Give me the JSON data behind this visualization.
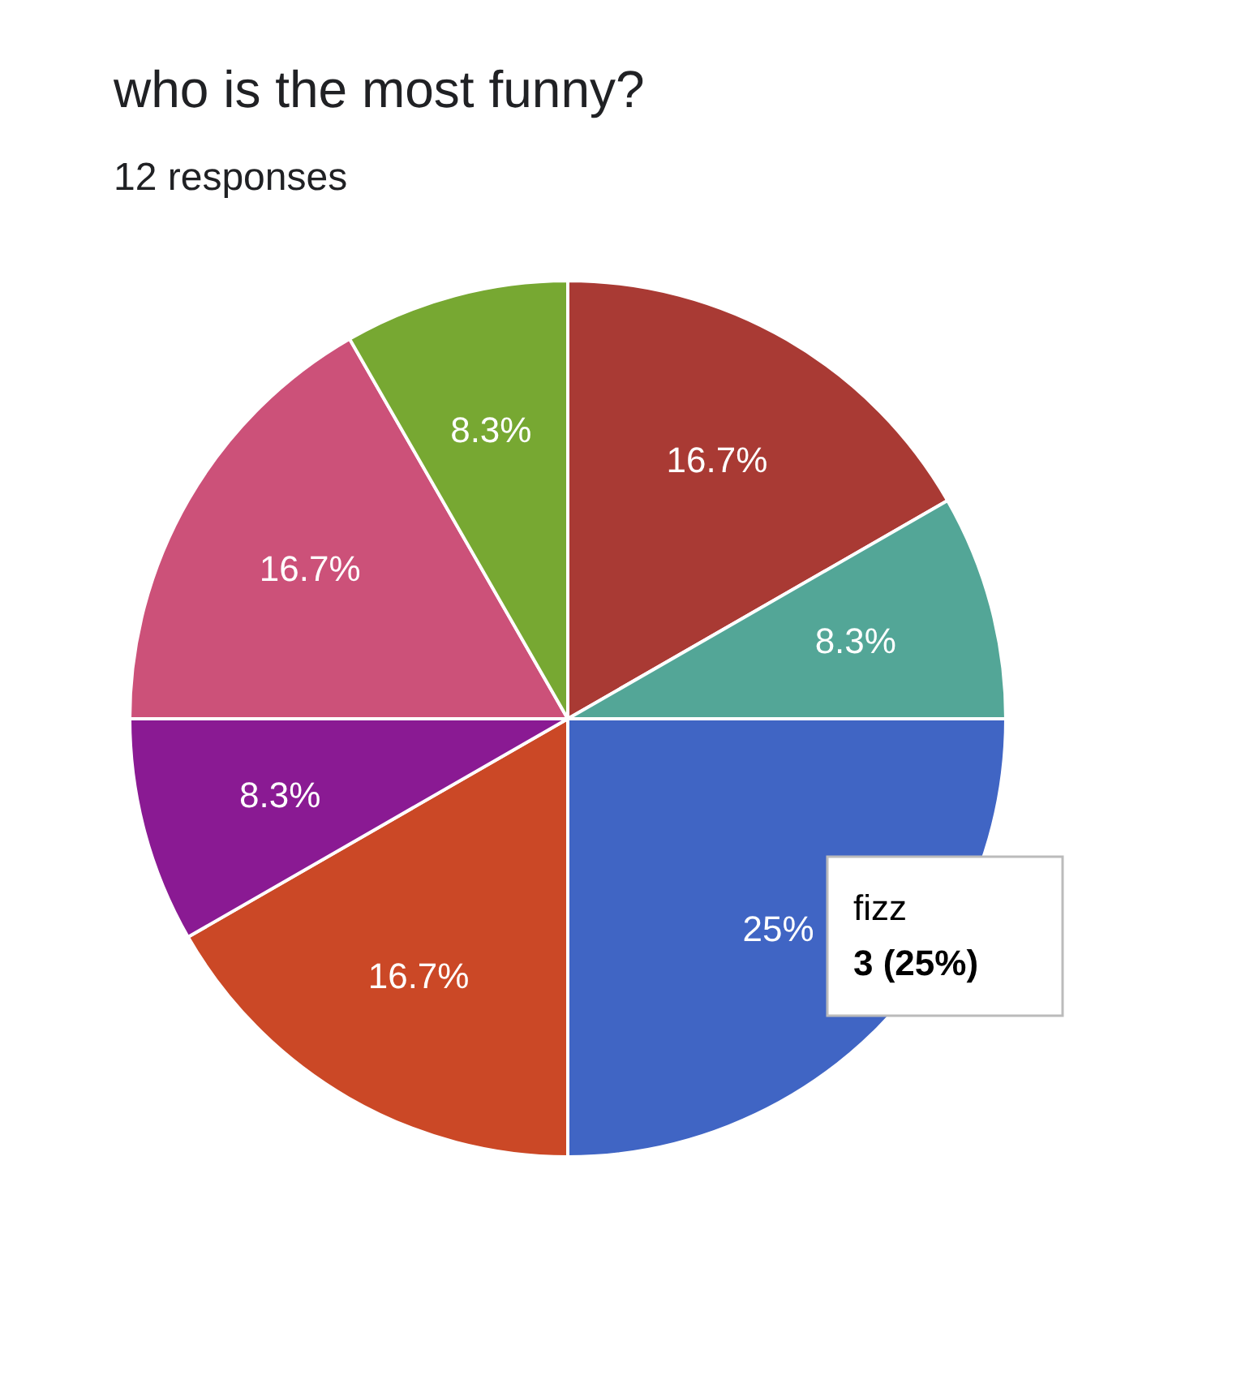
{
  "chart_data": {
    "type": "pie",
    "title": "who is the most funny?",
    "subtitle": "12 responses",
    "categories": [
      null,
      null,
      null,
      null,
      null,
      null,
      null
    ],
    "values": [
      16.7,
      8.3,
      25,
      16.7,
      8.3,
      16.7,
      8.3
    ],
    "colors": [
      "#a93a34",
      "#53a697",
      "#4065c4",
      "#cb4826",
      "#8a1a93",
      "#cc5179",
      "#77a832"
    ],
    "value_labels": [
      "16.7%",
      "8.3%",
      "25%",
      "16.7%",
      "8.3%",
      "16.7%",
      "8.3%"
    ],
    "annotations": [
      "fizz",
      "3 (25%)"
    ]
  }
}
